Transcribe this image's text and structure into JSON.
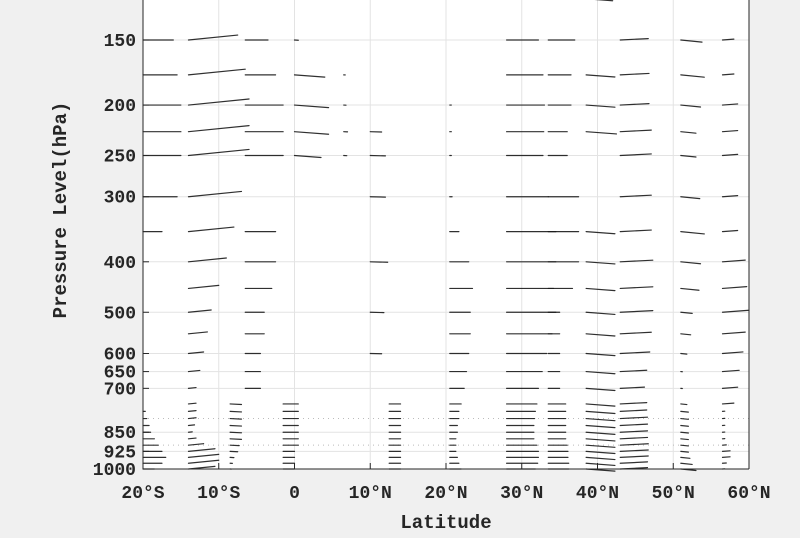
{
  "chart_data": {
    "type": "quiver",
    "xlabel": "Latitude",
    "ylabel": "Pressure Level(hPa)",
    "xlim": [
      -20,
      60
    ],
    "ylim": [
      125,
      1000
    ],
    "y_scale": "log",
    "y_reversed": true,
    "grid": true,
    "x_ticks": [
      -20,
      -10,
      0,
      10,
      20,
      30,
      40,
      50,
      60
    ],
    "x_tick_labels": [
      "20°S",
      "10°S",
      "0",
      "10°N",
      "20°N",
      "30°N",
      "40°N",
      "50°N",
      "60°N"
    ],
    "y_ticks": [
      150,
      200,
      250,
      300,
      400,
      500,
      600,
      650,
      700,
      850,
      925,
      1000
    ],
    "y_tick_labels": [
      "150",
      "200",
      "250",
      "300",
      "400",
      "500",
      "600",
      "650",
      "700",
      "850",
      "925",
      "1000"
    ],
    "levels": [
      125,
      150,
      175,
      200,
      225,
      250,
      300,
      350,
      400,
      450,
      500,
      550,
      600,
      650,
      700,
      750,
      775,
      800,
      825,
      850,
      875,
      900,
      925,
      950,
      975,
      1000
    ],
    "vector_color": "#1a1a1a",
    "columns": [
      {
        "lat": -20,
        "v": 0,
        "u": [
          0,
          4,
          4.5,
          5,
          5,
          5,
          4.5,
          2.5,
          0,
          0,
          0,
          0,
          0,
          0,
          0,
          0,
          0.3,
          0.5,
          0.8,
          1,
          1.5,
          2,
          2.5,
          3,
          2.5,
          1.5
        ]
      },
      {
        "lat": -14,
        "v": -0.4,
        "u": [
          0,
          6.5,
          7.5,
          8,
          8,
          8,
          7,
          6,
          5,
          4,
          3,
          2.5,
          2,
          1.5,
          1,
          1,
          1,
          1,
          0.8,
          0.5,
          1,
          2,
          3.5,
          4,
          4,
          3.5
        ]
      },
      {
        "lat": -6.5,
        "v": 0,
        "u": [
          0,
          3,
          4,
          5,
          5,
          5,
          0,
          4,
          4,
          3.5,
          2.5,
          2.5,
          2,
          2,
          2,
          0,
          0,
          0,
          0,
          0,
          0,
          0,
          0,
          0,
          0,
          0
        ]
      },
      {
        "lat": -8.5,
        "v": 0.2,
        "u": [
          0,
          0,
          0,
          0,
          0,
          0,
          0,
          0,
          0,
          0,
          0,
          0,
          0,
          0,
          0,
          1.5,
          1.5,
          1.5,
          1.5,
          1.5,
          1.5,
          1.2,
          1,
          0.5,
          0.3,
          0.2
        ]
      },
      {
        "lat": 0,
        "v": 0.3,
        "u": [
          0,
          0.5,
          4,
          4.5,
          4.5,
          3.5,
          0,
          0,
          0,
          0,
          0,
          0,
          0,
          0,
          0,
          0,
          0,
          0,
          0,
          0,
          0,
          0,
          0,
          0,
          0,
          0
        ]
      },
      {
        "lat": -1.5,
        "v": 0,
        "u": [
          0,
          0,
          0,
          0,
          0,
          0,
          0,
          0,
          0,
          0,
          0,
          0,
          0,
          0,
          0,
          2,
          2,
          2,
          2,
          2,
          2,
          2,
          1.5,
          1.5,
          1.5,
          1.5
        ]
      },
      {
        "lat": 6.5,
        "v": 0.2,
        "u": [
          0,
          0,
          0.2,
          0.3,
          0.5,
          0.4,
          0,
          0,
          0,
          0,
          0,
          0,
          0,
          0,
          0,
          0,
          0,
          0,
          0,
          0,
          0,
          0,
          0,
          0,
          0,
          0
        ]
      },
      {
        "lat": 10,
        "v": 0.1,
        "u": [
          0,
          0,
          0,
          0,
          1.5,
          2,
          2,
          0,
          2.3,
          0,
          1.8,
          0,
          1.5,
          0,
          0,
          0,
          0,
          0,
          0,
          0,
          0,
          0,
          0,
          0,
          0,
          0
        ]
      },
      {
        "lat": 12.5,
        "v": 0,
        "u": [
          0,
          0,
          0,
          0,
          0,
          0,
          0,
          0,
          0,
          0,
          0,
          0,
          0,
          0,
          0,
          1.5,
          1.5,
          1.5,
          1.5,
          1.5,
          1.5,
          1.5,
          1.5,
          1.5,
          1.5,
          1.5
        ]
      },
      {
        "lat": 20.5,
        "v": 0,
        "u": [
          0,
          0,
          0,
          0.2,
          0.2,
          0.2,
          0.3,
          1.2,
          2.5,
          3,
          2.7,
          2.7,
          2.5,
          2.2,
          1.9,
          1.5,
          1.2,
          1.2,
          1,
          1,
          0.8,
          0.8,
          0.8,
          1,
          1.2,
          1.5
        ]
      },
      {
        "lat": 28,
        "v": 0,
        "u": [
          0,
          4.2,
          4.8,
          5,
          4.9,
          4.8,
          5.5,
          6.5,
          6.5,
          6.2,
          6.5,
          6,
          5.3,
          4.7,
          4.2,
          4,
          3.8,
          3.7,
          3.6,
          3.6,
          3.6,
          4,
          4.2,
          4.2,
          4.1,
          3.8
        ]
      },
      {
        "lat": 33.5,
        "v": 0,
        "u": [
          0,
          3.5,
          3,
          3,
          2.5,
          2.5,
          4,
          4,
          4,
          3.2,
          1.5,
          1.5,
          1.5,
          1.5,
          1.5,
          2.3,
          2.3,
          2.3,
          2.3,
          2.3,
          2.3,
          2.5,
          2.6,
          2.6,
          2.7,
          2.7
        ]
      },
      {
        "lat": 38.5,
        "v": 0.3,
        "u": [
          3.5,
          0,
          3.8,
          3.8,
          4,
          0,
          0,
          3.8,
          3.8,
          3.8,
          3.8,
          3.8,
          3.8,
          3.8,
          3.8,
          3.8,
          3.8,
          3.8,
          3.8,
          3.8,
          3.8,
          3.8,
          3.8,
          3.8,
          3.8,
          3.8
        ]
      },
      {
        "lat": 43,
        "v": -0.2,
        "u": [
          3,
          3.7,
          3.8,
          3.8,
          4.1,
          4.1,
          4.1,
          4.1,
          4.3,
          4.3,
          4.3,
          4.1,
          3.9,
          3.5,
          3.2,
          3.5,
          3.5,
          3.6,
          3.6,
          3.6,
          3.6,
          3.7,
          3.7,
          3.7,
          3.6,
          3.6
        ]
      },
      {
        "lat": 51,
        "v": 0.4,
        "u": [
          0,
          2.8,
          3.1,
          2.6,
          2,
          2,
          2.5,
          3.1,
          2.6,
          2.4,
          1.5,
          1.3,
          0.8,
          0.2,
          0.2,
          0.8,
          1,
          1,
          1,
          1,
          1,
          1,
          1,
          1.2,
          1.5,
          2
        ]
      },
      {
        "lat": 56.5,
        "v": -0.3,
        "u": [
          0,
          1.5,
          1.5,
          2,
          2,
          2,
          2,
          2,
          3,
          3.2,
          3.5,
          3,
          2.7,
          2.2,
          2,
          1.5,
          0.3,
          0.3,
          0.3,
          0.3,
          0.3,
          0.5,
          1,
          1,
          0.5,
          0.3
        ]
      }
    ]
  }
}
